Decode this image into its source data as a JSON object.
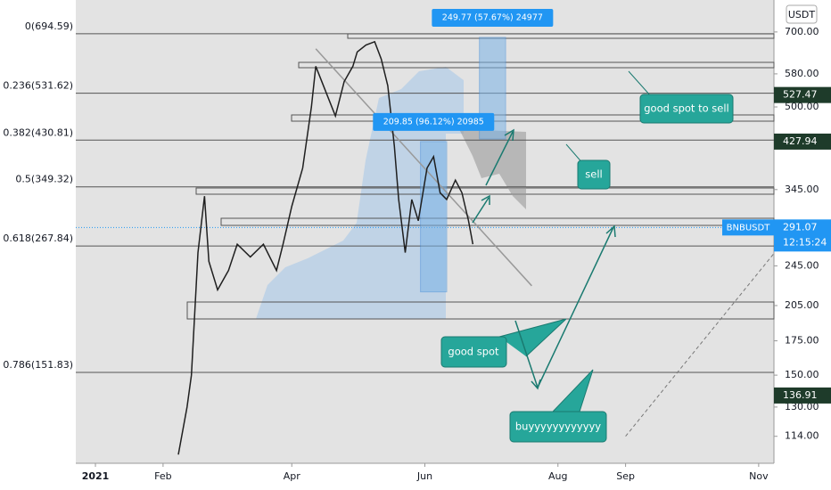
{
  "chart_data": {
    "type": "line",
    "log_scale": true,
    "currency": "USDT",
    "ylim": [
      101,
      808
    ],
    "yticks": [
      {
        "value": 700,
        "label": "700.00"
      },
      {
        "value": 580,
        "label": "580.00"
      },
      {
        "value": 500,
        "label": "500.00"
      },
      {
        "value": 345,
        "label": "345.00"
      },
      {
        "value": 245,
        "label": "245.00"
      },
      {
        "value": 205,
        "label": "205.00"
      },
      {
        "value": 175,
        "label": "175.00"
      },
      {
        "value": 150,
        "label": "150.00"
      },
      {
        "value": 130,
        "label": "130.00"
      },
      {
        "value": 114,
        "label": "114.00"
      }
    ],
    "xlim": [
      -9,
      311
    ],
    "xticks": [
      {
        "value": 0,
        "label": "2021"
      },
      {
        "value": 31,
        "label": "Feb"
      },
      {
        "value": 90,
        "label": "Apr"
      },
      {
        "value": 151,
        "label": "Jun"
      },
      {
        "value": 212,
        "label": "Aug"
      },
      {
        "value": 243,
        "label": "Sep"
      },
      {
        "value": 304,
        "label": "Nov"
      }
    ],
    "series": [
      {
        "name": "BNBUSDT",
        "color": "#1f1f1f",
        "x": [
          38,
          42,
          44,
          47,
          50,
          52,
          56,
          61,
          65,
          71,
          77,
          83,
          86,
          90,
          95,
          99,
          101,
          106,
          110,
          114,
          118,
          120,
          124,
          128,
          131,
          134,
          137,
          139,
          142,
          145,
          148,
          152,
          155,
          158,
          161,
          165,
          168,
          171,
          173
        ],
        "values": [
          105,
          130,
          150,
          260,
          335,
          250,
          220,
          240,
          270,
          255,
          270,
          240,
          270,
          320,
          380,
          500,
          600,
          530,
          480,
          560,
          600,
          640,
          660,
          670,
          620,
          550,
          420,
          330,
          260,
          330,
          300,
          380,
          400,
          340,
          330,
          360,
          340,
          300,
          270
        ]
      }
    ],
    "fib_levels": [
      {
        "label": "0(694.59)",
        "value": 694.59
      },
      {
        "label": "0.236(531.62)",
        "value": 531.62
      },
      {
        "label": "0.382(430.81)",
        "value": 430.81
      },
      {
        "label": "0.5(349.32)",
        "value": 349.32
      },
      {
        "label": "0.618(267.84)",
        "value": 267.84
      },
      {
        "label": "0.786(151.83)",
        "value": 151.83
      }
    ],
    "price_labels": [
      527.47,
      427.94,
      136.91
    ],
    "last_price": 291.07,
    "countdown": "12:15:24",
    "measures": [
      {
        "label": "249.77 (57.67%) 24977",
        "from": 433,
        "to": 683,
        "x0": 176,
        "x1": 188
      },
      {
        "label": "209.85 (96.12%) 20985",
        "from": 218,
        "to": 428,
        "x0": 149,
        "x1": 161
      }
    ],
    "trend_line": {
      "x": [
        101,
        200
      ],
      "values": [
        649,
        224
      ]
    },
    "dashed_line": {
      "x": [
        243,
        311
      ],
      "values": [
        114,
        259
      ]
    },
    "annotations": [
      "good spot to sell",
      "sell",
      "good spot",
      "buyyyyyyyyyyyy"
    ]
  }
}
